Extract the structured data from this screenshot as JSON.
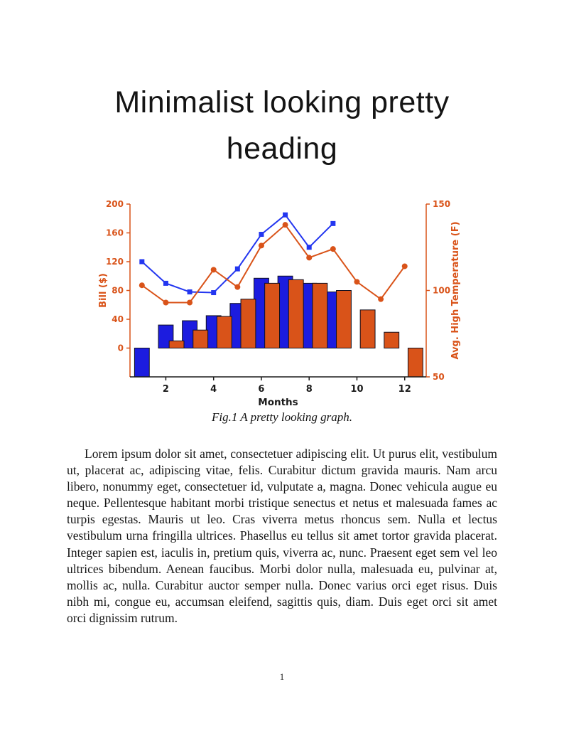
{
  "heading": {
    "title": "Minimalist looking pretty heading"
  },
  "figure": {
    "caption": "Fig.1 A pretty looking graph."
  },
  "body": {
    "paragraph": "Lorem ipsum dolor sit amet, consectetuer adipiscing elit. Ut purus elit, vestibulum ut, placerat ac, adipiscing vitae, felis. Curabitur dictum gravida mauris. Nam arcu libero, nonummy eget, consectetuer id, vulputate a, magna. Donec vehicula augue eu neque. Pellentesque habitant morbi tristique senectus et netus et malesuada fames ac turpis egestas. Mauris ut leo. Cras viverra metus rhoncus sem. Nulla et lectus vestibulum urna fringilla ultrices. Phasellus eu tellus sit amet tortor gravida placerat. Integer sapien est, iaculis in, pretium quis, viverra ac, nunc. Praesent eget sem vel leo ultrices bibendum. Aenean faucibus. Morbi dolor nulla, malesuada eu, pulvinar at, mollis ac, nulla. Curabitur auctor semper nulla. Donec varius orci eget risus. Duis nibh mi, congue eu, accumsan eleifend, sagittis quis, diam. Duis eget orci sit amet orci dignissim rutrum."
  },
  "page": {
    "number": "1"
  },
  "chart_data": {
    "type": "bar",
    "subtype": "combo bar + line, dual y-axis",
    "x": [
      1,
      2,
      3,
      4,
      5,
      6,
      7,
      8,
      9,
      10,
      11,
      12
    ],
    "xticks": [
      2,
      4,
      6,
      8,
      10,
      12
    ],
    "xlabel": "Months",
    "xlim": [
      0.5,
      12.9
    ],
    "grid": false,
    "legend": "none",
    "left_axis": {
      "label": "Bill ($)",
      "ticks": [
        0,
        40,
        80,
        120,
        160,
        200
      ],
      "ylim": [
        -40,
        200
      ],
      "color": "#D95319"
    },
    "right_axis": {
      "label": "Avg. High Temperature (F)",
      "ticks": [
        50,
        100,
        150
      ],
      "ylim": [
        50,
        150
      ],
      "color": "#D95319"
    },
    "series": [
      {
        "name": "electricity-bill-bars-blue",
        "type": "bar",
        "axis": "left",
        "offset": 0,
        "color": "#1C1CDF",
        "values": [
          -40,
          32,
          38,
          45,
          62,
          97,
          100,
          90,
          78,
          null,
          null,
          null
        ]
      },
      {
        "name": "bill-bars-orange",
        "type": "bar",
        "axis": "left",
        "offset": 0.45,
        "color": "#D95319",
        "values": [
          null,
          10,
          25,
          44,
          68,
          90,
          95,
          90,
          80,
          53,
          22,
          -40
        ]
      },
      {
        "name": "bill-line-blue",
        "type": "line",
        "marker": "square",
        "axis": "left",
        "color": "#2336F0",
        "values": [
          120,
          90,
          78,
          77,
          110,
          158,
          185,
          140,
          173,
          null,
          null,
          null
        ]
      },
      {
        "name": "avg-high-temperature-line-orange",
        "type": "line",
        "marker": "circle",
        "axis": "right",
        "color": "#D95319",
        "values": [
          103,
          93,
          93,
          112,
          102,
          126,
          138,
          119,
          124,
          105,
          95,
          114
        ]
      }
    ]
  }
}
